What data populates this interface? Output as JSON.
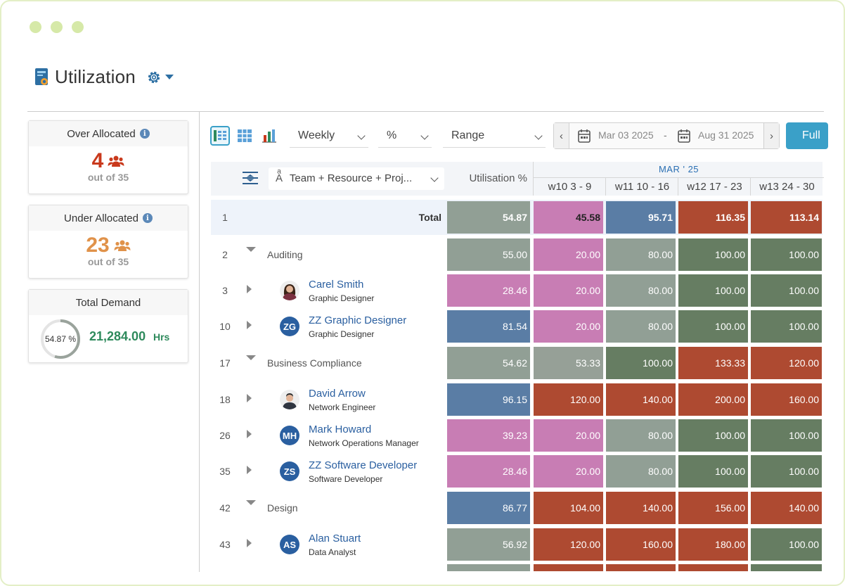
{
  "page": {
    "title": "Utilization"
  },
  "cards": {
    "over": {
      "title": "Over Allocated",
      "count": "4",
      "outof": "out of 35"
    },
    "under": {
      "title": "Under Allocated",
      "count": "23",
      "outof": "out of 35"
    },
    "demand": {
      "title": "Total Demand",
      "percent": "54.87 %",
      "percent_value": 54.87,
      "hours": "21,284.00",
      "unit": "Hrs"
    }
  },
  "toolbar": {
    "period": "Weekly",
    "unit": "%",
    "range": "Range",
    "start_date": "Mar 03 2025",
    "end_date": "Aug 31 2025",
    "date_separator": "-",
    "full_button": "Full"
  },
  "grid": {
    "group_by": "Team + Resource + Proj...",
    "util_header": "Utilisation %",
    "month": "MAR ' 25",
    "weeks": [
      "w10  3 - 9",
      "w11  10 - 16",
      "w12  17 - 23",
      "w13  24 - 30"
    ],
    "colors": {
      "gray": "#919f95",
      "pink": "#c87db4",
      "blue": "#5a7da5",
      "green": "#667d62",
      "red": "#ae4a31",
      "lightgray": "#96a097"
    },
    "total": {
      "num": "1",
      "label": "Total",
      "util": "54.87",
      "weeks": [
        "45.58",
        "95.71",
        "116.35",
        "113.14"
      ]
    },
    "rows": [
      {
        "num": "2",
        "type": "group",
        "name": "Auditing",
        "util": "55.00",
        "weeks": [
          "20.00",
          "80.00",
          "100.00",
          "100.00"
        ]
      },
      {
        "num": "3",
        "type": "resource",
        "name": "Carel Smith",
        "role": "Graphic Designer",
        "initials": "",
        "photo": "woman",
        "util": "28.46",
        "weeks": [
          "20.00",
          "80.00",
          "100.00",
          "100.00"
        ]
      },
      {
        "num": "10",
        "type": "resource",
        "name": "ZZ Graphic Designer",
        "role": "Graphic Designer",
        "initials": "ZG",
        "util": "81.54",
        "weeks": [
          "20.00",
          "80.00",
          "100.00",
          "100.00"
        ]
      },
      {
        "num": "17",
        "type": "group",
        "name": "Business Compliance",
        "util": "54.62",
        "weeks": [
          "53.33",
          "100.00",
          "133.33",
          "120.00"
        ]
      },
      {
        "num": "18",
        "type": "resource",
        "name": "David Arrow",
        "role": "Network Engineer",
        "initials": "",
        "photo": "man",
        "util": "96.15",
        "weeks": [
          "120.00",
          "140.00",
          "200.00",
          "160.00"
        ]
      },
      {
        "num": "26",
        "type": "resource",
        "name": "Mark Howard",
        "role": "Network Operations Manager",
        "initials": "MH",
        "util": "39.23",
        "weeks": [
          "20.00",
          "80.00",
          "100.00",
          "100.00"
        ]
      },
      {
        "num": "35",
        "type": "resource",
        "name": "ZZ Software Developer",
        "role": "Software Developer",
        "initials": "ZS",
        "util": "28.46",
        "weeks": [
          "20.00",
          "80.00",
          "100.00",
          "100.00"
        ]
      },
      {
        "num": "42",
        "type": "group",
        "name": "Design",
        "util": "86.77",
        "weeks": [
          "104.00",
          "140.00",
          "156.00",
          "140.00"
        ]
      },
      {
        "num": "43",
        "type": "resource",
        "name": "Alan Stuart",
        "role": "Data Analyst",
        "initials": "AS",
        "util": "56.92",
        "weeks": [
          "120.00",
          "160.00",
          "180.00",
          "100.00"
        ]
      }
    ]
  }
}
